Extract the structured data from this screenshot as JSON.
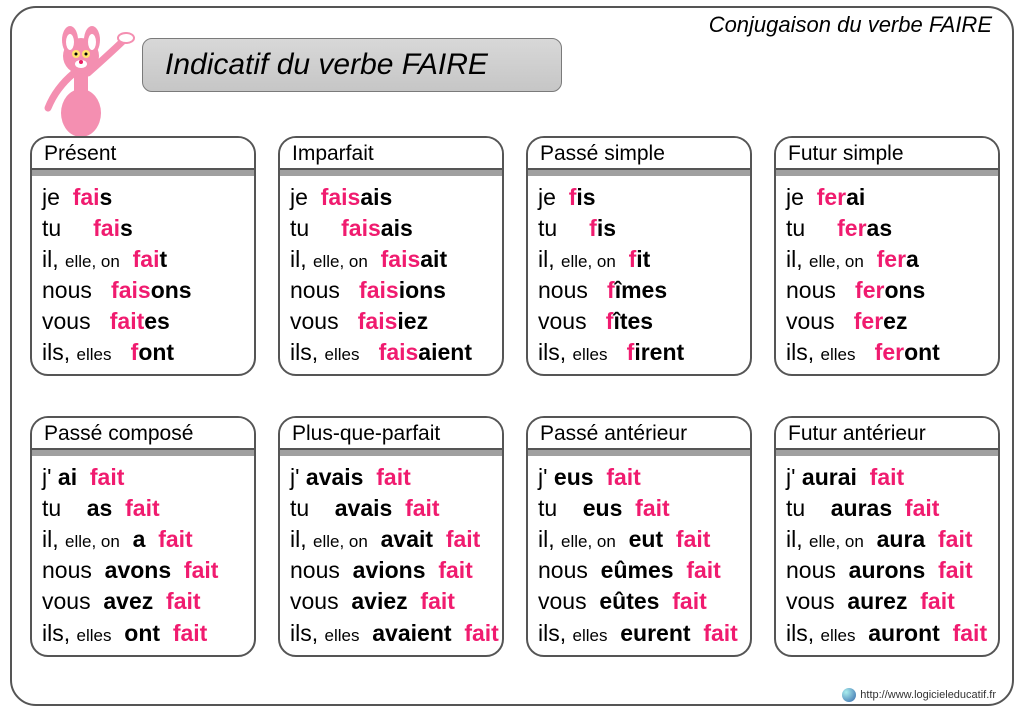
{
  "header_title": "Conjugaison du verbe FAIRE",
  "main_title": "Indicatif du verbe FAIRE",
  "footer_url": "http://www.logicieleducatif.fr",
  "colors": {
    "stem": "#f01b6f",
    "frame_border": "#555555",
    "title_bg": "#cfcfcf",
    "header_shadow": "#a0a0a0"
  },
  "pronouns": [
    {
      "main": "je",
      "sub": ""
    },
    {
      "main": "tu",
      "sub": ""
    },
    {
      "main": "il,",
      "sub": "elle, on"
    },
    {
      "main": "nous",
      "sub": ""
    },
    {
      "main": "vous",
      "sub": ""
    },
    {
      "main": "ils,",
      "sub": "elles"
    }
  ],
  "pronouns_j": [
    {
      "main": "j'",
      "sub": ""
    },
    {
      "main": "tu",
      "sub": ""
    },
    {
      "main": "il,",
      "sub": "elle, on"
    },
    {
      "main": "nous",
      "sub": ""
    },
    {
      "main": "vous",
      "sub": ""
    },
    {
      "main": "ils,",
      "sub": "elles"
    }
  ],
  "tenses": [
    {
      "title": "Présent",
      "type": "simple",
      "forms": [
        {
          "stem": "fai",
          "ending": "s",
          "spacer": " "
        },
        {
          "stem": "fai",
          "ending": "s",
          "spacer": "    "
        },
        {
          "stem": "fai",
          "ending": "t",
          "spacer": ""
        },
        {
          "stem": "fais",
          "ending": "ons",
          "spacer": "  "
        },
        {
          "stem": "fait",
          "ending": "es",
          "spacer": "  "
        },
        {
          "stem": "f",
          "ending": "ont",
          "spacer": "  "
        }
      ]
    },
    {
      "title": "Imparfait",
      "type": "simple",
      "forms": [
        {
          "stem": "fais",
          "ending": "ais",
          "spacer": "  "
        },
        {
          "stem": "fais",
          "ending": "ais",
          "spacer": "  "
        },
        {
          "stem": "fais",
          "ending": "ait",
          "spacer": "  "
        },
        {
          "stem": "fais",
          "ending": "ions",
          "spacer": "  "
        },
        {
          "stem": "fais",
          "ending": "iez",
          "spacer": "  "
        },
        {
          "stem": "fais",
          "ending": "aient",
          "spacer": "  "
        }
      ]
    },
    {
      "title": "Passé simple",
      "type": "simple",
      "forms": [
        {
          "stem": "f",
          "ending": "is",
          "spacer": "  "
        },
        {
          "stem": "f",
          "ending": "is",
          "spacer": "  "
        },
        {
          "stem": "f",
          "ending": "it",
          "spacer": "  "
        },
        {
          "stem": "f",
          "ending": "îmes",
          "spacer": "  "
        },
        {
          "stem": "f",
          "ending": "îtes",
          "spacer": "  "
        },
        {
          "stem": "f",
          "ending": "irent",
          "spacer": "  "
        }
      ]
    },
    {
      "title": "Futur simple",
      "type": "simple",
      "forms": [
        {
          "stem": "fer",
          "ending": "ai",
          "spacer": "  "
        },
        {
          "stem": "fer",
          "ending": "as",
          "spacer": "    "
        },
        {
          "stem": "fer",
          "ending": "a",
          "spacer": "  "
        },
        {
          "stem": "fer",
          "ending": "ons",
          "spacer": "  "
        },
        {
          "stem": "fer",
          "ending": "ez",
          "spacer": "  "
        },
        {
          "stem": "fer",
          "ending": "ont",
          "spacer": "  "
        }
      ]
    },
    {
      "title": "Passé composé",
      "type": "compound",
      "aux": [
        "ai",
        "as",
        "a",
        "avons",
        "avez",
        "ont"
      ],
      "participle": "fait"
    },
    {
      "title": "Plus-que-parfait",
      "type": "compound",
      "aux": [
        "avais",
        "avais",
        "avait",
        "avions",
        "aviez",
        "avaient"
      ],
      "participle": "fait"
    },
    {
      "title": "Passé antérieur",
      "type": "compound",
      "aux": [
        "eus",
        "eus",
        "eut",
        "eûmes",
        "eûtes",
        "eurent"
      ],
      "participle": "fait"
    },
    {
      "title": "Futur antérieur",
      "type": "compound",
      "aux": [
        "aurai",
        "auras",
        "aura",
        "aurons",
        "aurez",
        "auront"
      ],
      "participle": "fait"
    }
  ]
}
